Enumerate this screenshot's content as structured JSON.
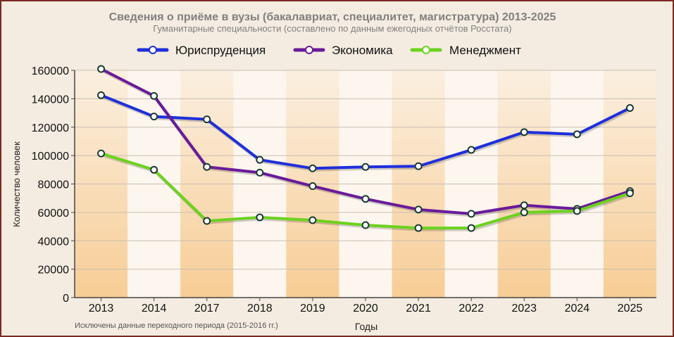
{
  "chart_data": {
    "type": "line",
    "title": "Сведения о приёме в вузы (бакалавриат, специалитет, магистратура) 2013-2025",
    "subtitle": "Гуманитарные специальности (составлено по данным ежегодных отчётов Росстата)",
    "xlabel": "Годы",
    "ylabel": "Количество человек",
    "note": "Исключены данные переходного периода (2015-2016 гг.)",
    "categories": [
      "2013",
      "2014",
      "2017",
      "2018",
      "2019",
      "2020",
      "2021",
      "2022",
      "2023",
      "2024",
      "2025"
    ],
    "ylim": [
      0,
      160000
    ],
    "yticks": [
      "0",
      "20000",
      "40000",
      "60000",
      "80000",
      "100000",
      "120000",
      "140000",
      "160000"
    ],
    "grid": true,
    "legend_position": "top",
    "series": [
      {
        "name": "Юриспруденция",
        "color": "#1f2fdb",
        "values": [
          142500,
          127500,
          125500,
          97000,
          91000,
          92000,
          92500,
          104000,
          116500,
          115000,
          133500
        ]
      },
      {
        "name": "Экономика",
        "color": "#6a1a9a",
        "values": [
          161000,
          142000,
          92000,
          88000,
          78500,
          69500,
          62000,
          59000,
          65000,
          62500,
          75000
        ]
      },
      {
        "name": "Менеджмент",
        "color": "#6cd21e",
        "values": [
          101500,
          90000,
          54000,
          56500,
          54500,
          51000,
          49000,
          49000,
          60000,
          61000,
          73500
        ]
      }
    ]
  }
}
